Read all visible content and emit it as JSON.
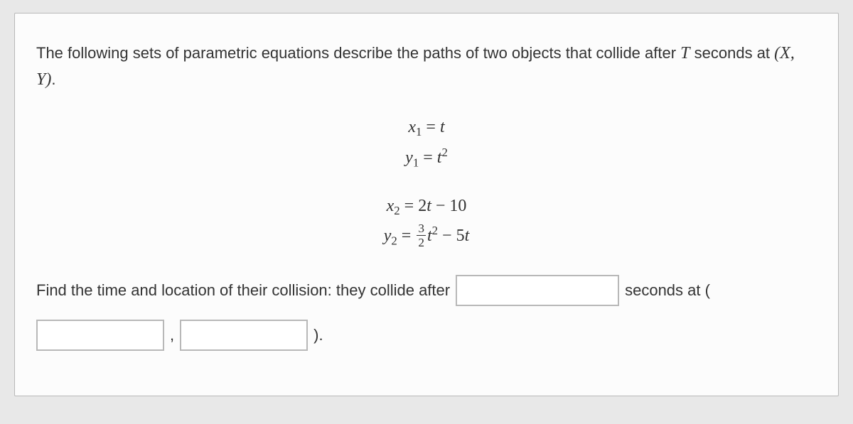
{
  "problem": {
    "intro_part1": "The following sets of parametric equations describe the paths of two objects that collide after ",
    "intro_var_T": "T",
    "intro_part2": " seconds at ",
    "intro_point": "(X, Y)",
    "intro_part3": "."
  },
  "equations": {
    "group1": {
      "x_lhs": "x",
      "x_sub": "1",
      "x_eq": " = ",
      "x_rhs": "t",
      "y_lhs": "y",
      "y_sub": "1",
      "y_eq": " = ",
      "y_rhs_base": "t",
      "y_rhs_exp": "2"
    },
    "group2": {
      "x_lhs": "x",
      "x_sub": "2",
      "x_eq": " = ",
      "x_rhs": "2t − 10",
      "y_lhs": "y",
      "y_sub": "2",
      "y_eq": " = ",
      "y_frac_num": "3",
      "y_frac_den": "2",
      "y_rhs_base": "t",
      "y_rhs_exp": "2",
      "y_rhs_tail": " − 5t"
    }
  },
  "answer": {
    "lead": "Find the time and location of their collision: they collide after",
    "seconds_at": "seconds at (",
    "comma": ",",
    "close": ")."
  },
  "inputs": {
    "time_value": "",
    "x_value": "",
    "y_value": ""
  },
  "style": {
    "background": "#e8e8e8",
    "paper_bg": "#fcfcfc",
    "border_color": "#b8b8b8",
    "text_color": "#333333",
    "input_border": "#b8b8b8",
    "body_fontsize": 22,
    "math_fontsize": 24
  }
}
